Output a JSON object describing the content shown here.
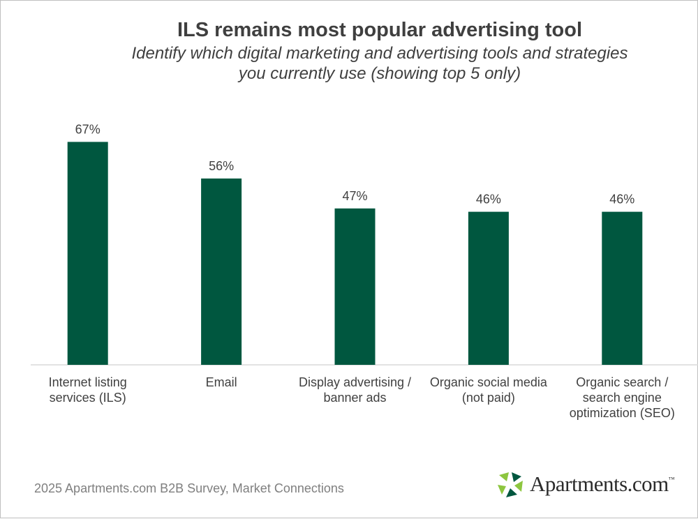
{
  "chart_data": {
    "type": "bar",
    "title": "ILS remains most popular advertising tool",
    "subtitle_lines": [
      "Identify which digital marketing and advertising tools and strategies",
      "you currently use (showing top 5 only)"
    ],
    "categories": [
      [
        "Internet listing",
        "services (ILS)"
      ],
      [
        "Email"
      ],
      [
        "Display advertising /",
        "banner ads"
      ],
      [
        "Organic social media",
        "(not paid)"
      ],
      [
        "Organic search /",
        "search engine",
        "optimization (SEO)"
      ]
    ],
    "values": [
      67,
      56,
      47,
      46,
      46
    ],
    "value_labels": [
      "67%",
      "56%",
      "47%",
      "46%",
      "46%"
    ],
    "unit": "%",
    "ylim": [
      0,
      70
    ],
    "grid": false,
    "bar_color": "#00573f"
  },
  "footer": {
    "source": "2025 Apartments.com B2B Survey, Market Connections"
  },
  "logo": {
    "text": "Apartments.com",
    "trademark": "™",
    "colors": [
      "#8dc63f",
      "#00573f"
    ]
  }
}
